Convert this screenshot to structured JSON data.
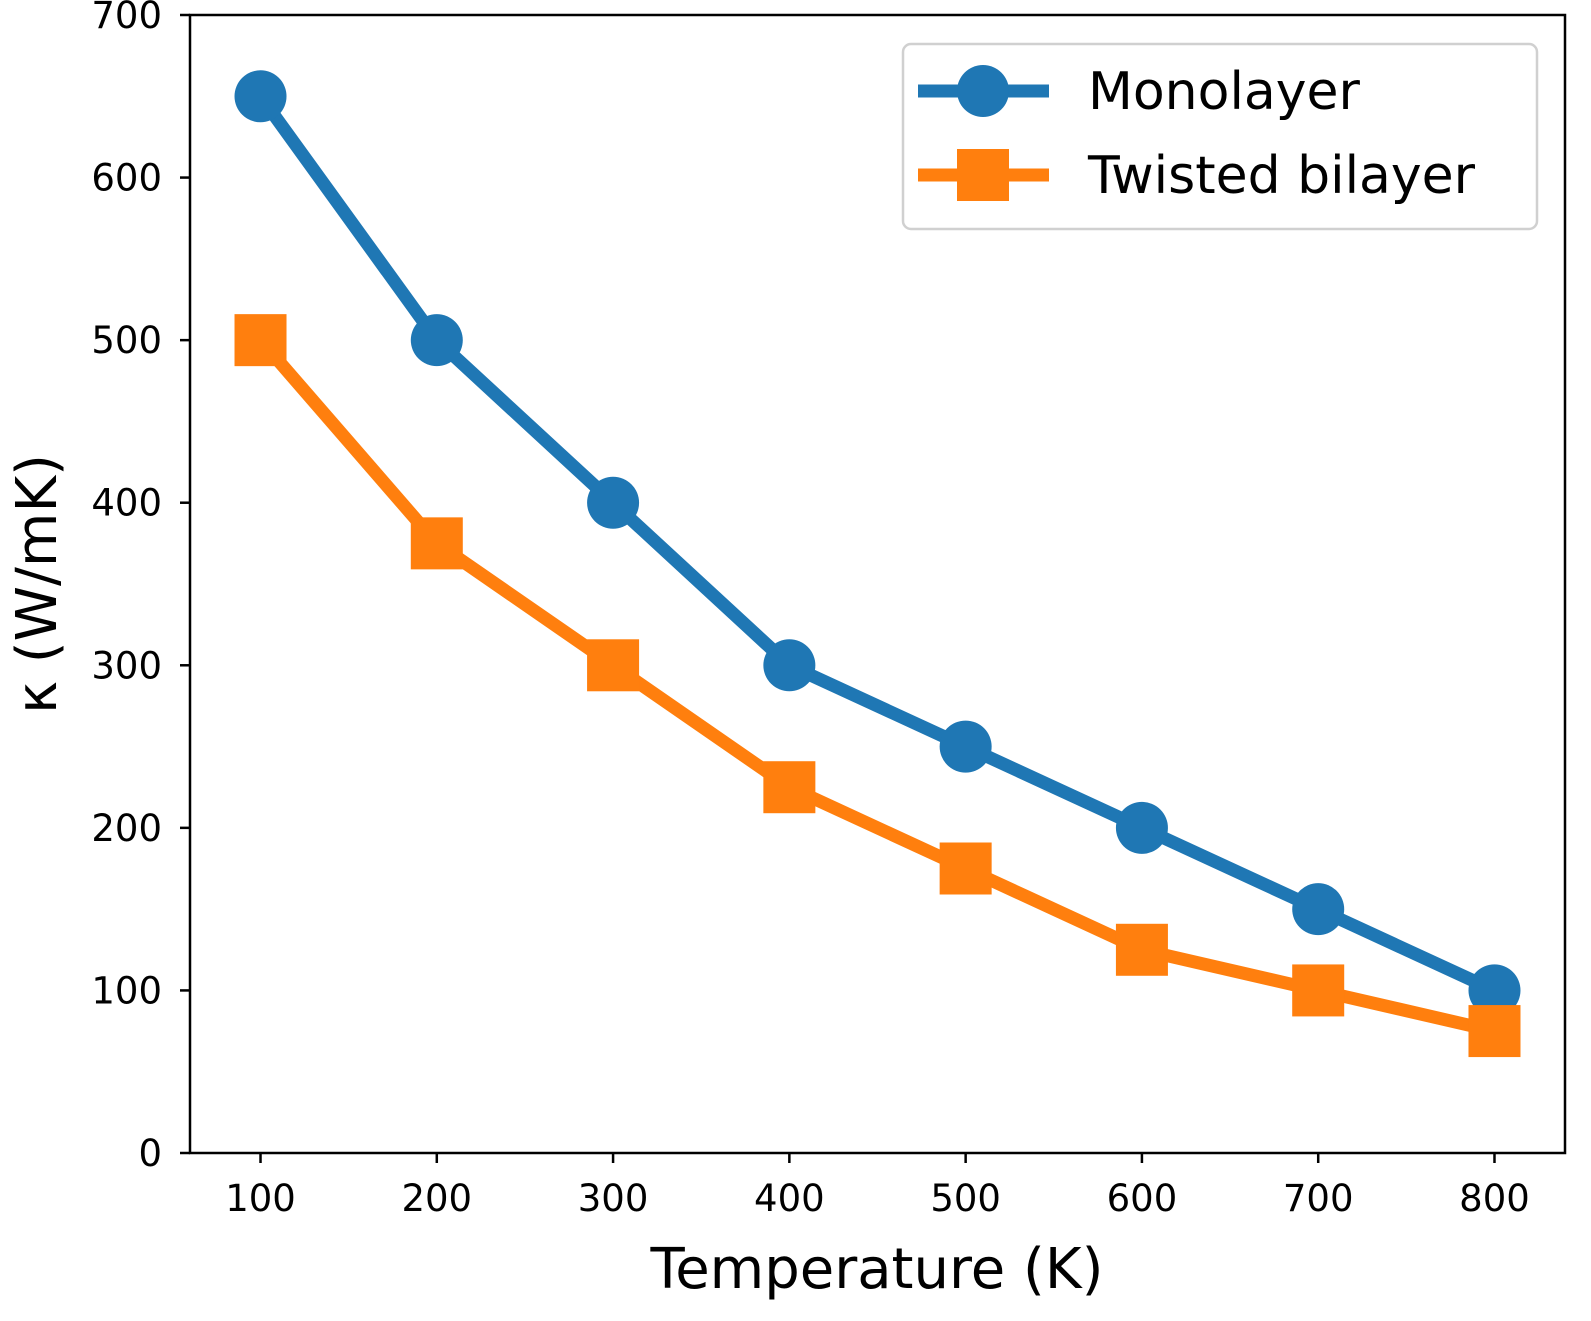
{
  "chart_data": {
    "type": "line",
    "title": "",
    "xlabel": "Temperature (K)",
    "ylabel": "κ (W/mK)",
    "x": [
      100,
      200,
      300,
      400,
      500,
      600,
      700,
      800
    ],
    "xlim": [
      60,
      840
    ],
    "ylim": [
      0,
      700
    ],
    "xticks": [
      "100",
      "200",
      "300",
      "400",
      "500",
      "600",
      "700",
      "800"
    ],
    "yticks": [
      "0",
      "100",
      "200",
      "300",
      "400",
      "500",
      "600",
      "700"
    ],
    "grid": false,
    "legend_position": "top-right",
    "series": [
      {
        "name": "Monolayer",
        "color": "#1f77b4",
        "marker": "circle",
        "values": [
          650,
          500,
          400,
          300,
          250,
          200,
          150,
          100
        ]
      },
      {
        "name": "Twisted bilayer",
        "color": "#ff7f0e",
        "marker": "square",
        "values": [
          500,
          375,
          300,
          225,
          175,
          125,
          100,
          75
        ]
      }
    ]
  }
}
